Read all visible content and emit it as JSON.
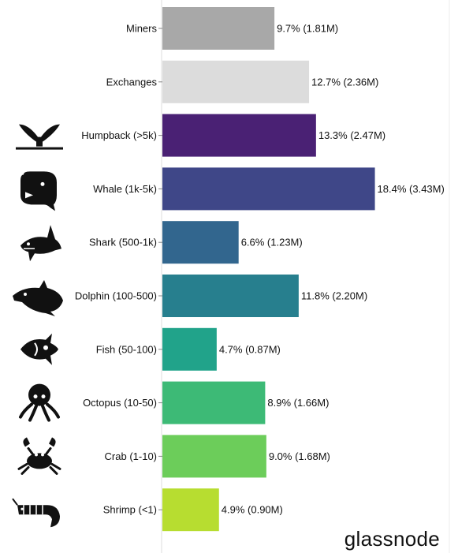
{
  "brand": "glassnode",
  "chart_data": {
    "type": "bar",
    "orientation": "horizontal",
    "categories": [
      "Miners",
      "Exchanges",
      "Humpback (>5k)",
      "Whale (1k-5k)",
      "Shark (500-1k)",
      "Dolphin (100-500)",
      "Fish (50-100)",
      "Octopus (10-50)",
      "Crab (1-10)",
      "Shrimp (<1)"
    ],
    "values": [
      9.7,
      12.7,
      13.3,
      18.4,
      6.6,
      11.8,
      4.7,
      8.9,
      9.0,
      4.9
    ],
    "value_labels": [
      "9.7% (1.81M)",
      "12.7% (2.36M)",
      "13.3% (2.47M)",
      "18.4% (3.43M)",
      "6.6% (1.23M)",
      "11.8% (2.20M)",
      "4.7% (0.87M)",
      "8.9% (1.66M)",
      "9.0% (1.68M)",
      "4.9% (0.90M)"
    ],
    "colors": [
      "#a8a8a8",
      "#dcdcdc",
      "#4a2174",
      "#3f4788",
      "#32668e",
      "#277f8e",
      "#21a38a",
      "#3dba76",
      "#6ccd5a",
      "#b7dd30"
    ],
    "icons": [
      "",
      "",
      "whale-tail-icon",
      "whale-icon",
      "shark-icon",
      "dolphin-icon",
      "fish-icon",
      "octopus-icon",
      "crab-icon",
      "shrimp-icon"
    ],
    "xlim": [
      0,
      25
    ],
    "grid": false,
    "title": "",
    "xlabel": "",
    "ylabel": ""
  }
}
